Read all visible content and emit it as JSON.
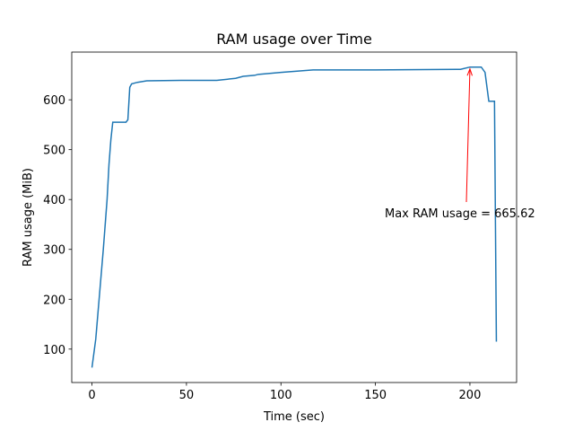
{
  "chart_data": {
    "type": "line",
    "title": "RAM usage over Time",
    "x_label": "Time (sec)",
    "y_label": "RAM usage (MiB)",
    "x": [
      0,
      2,
      4,
      6,
      8,
      9,
      10,
      11,
      14,
      18,
      19,
      20,
      21,
      24,
      29,
      47,
      66,
      76,
      80,
      86,
      88,
      100,
      117,
      150,
      195,
      200,
      206,
      208,
      210,
      213,
      214
    ],
    "values": [
      63,
      120,
      210,
      300,
      400,
      470,
      520,
      555,
      555,
      555,
      560,
      625,
      632,
      635,
      638,
      639,
      639,
      643,
      647,
      649,
      651,
      655,
      660,
      660,
      661,
      665.62,
      665.62,
      655,
      597,
      597,
      115
    ],
    "color": "#1f77b4",
    "annotation": "Max RAM usage = 665.62",
    "annotation_color": "#ff0000",
    "xlim": [
      -10.7,
      224.7
    ],
    "xticks": [
      0,
      50,
      100,
      150,
      200
    ],
    "ylim": [
      33,
      695.7
    ],
    "yticks": [
      100,
      200,
      300,
      400,
      500,
      600
    ]
  }
}
